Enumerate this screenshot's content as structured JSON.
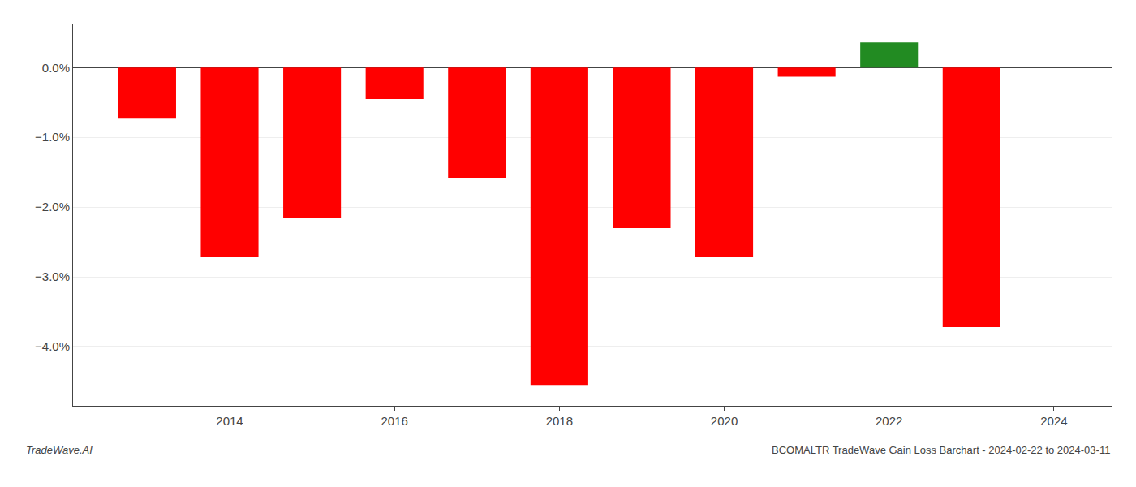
{
  "chart_data": {
    "type": "bar",
    "title": "BCOMALTR TradeWave Gain Loss Barchart - 2024-02-22 to 2024-03-11",
    "annotations": [
      "TradeWave.AI"
    ],
    "x": [
      2013,
      2014,
      2015,
      2016,
      2017,
      2018,
      2019,
      2020,
      2021,
      2022,
      2023
    ],
    "values": [
      -0.72,
      -2.72,
      -2.15,
      -0.45,
      -1.58,
      -4.55,
      -2.3,
      -2.72,
      -0.13,
      0.36,
      -3.72
    ],
    "colors": [
      "#ff0000",
      "#ff0000",
      "#ff0000",
      "#ff0000",
      "#ff0000",
      "#ff0000",
      "#ff0000",
      "#ff0000",
      "#ff0000",
      "#228B22",
      "#ff0000"
    ],
    "xlim": [
      2012.1,
      2024.7
    ],
    "xticks": [
      2014,
      2016,
      2018,
      2020,
      2022,
      2024
    ],
    "ylim": [
      -4.85,
      0.62
    ],
    "yticks": [
      {
        "value": 0.0,
        "label": "0.0%"
      },
      {
        "value": -1.0,
        "label": "−1.0%"
      },
      {
        "value": -2.0,
        "label": "−2.0%"
      },
      {
        "value": -3.0,
        "label": "−3.0%"
      },
      {
        "value": -4.0,
        "label": "−4.0%"
      }
    ],
    "grid": true
  }
}
